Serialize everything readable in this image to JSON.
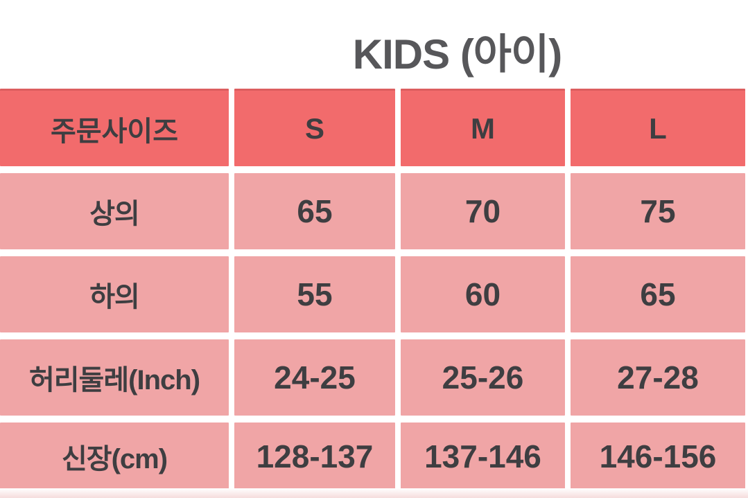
{
  "title": "KIDS (아이)",
  "colors": {
    "header_bg": "#F26B6C",
    "row_bg": "#F0A5A6",
    "gap": "#FFFFFF",
    "cell_text": "#3E3E41",
    "title_text": "#57575A"
  },
  "chart_data": {
    "type": "table",
    "title": "KIDS (아이)",
    "columns": [
      "주문사이즈",
      "S",
      "M",
      "L"
    ],
    "rows": [
      {
        "label": "상의",
        "values": [
          "65",
          "70",
          "75"
        ]
      },
      {
        "label": "하의",
        "values": [
          "55",
          "60",
          "65"
        ]
      },
      {
        "label": "허리둘레(Inch)",
        "values": [
          "24-25",
          "25-26",
          "27-28"
        ]
      },
      {
        "label": "신장(cm)",
        "values": [
          "128-137",
          "137-146",
          "146-156"
        ]
      }
    ]
  }
}
